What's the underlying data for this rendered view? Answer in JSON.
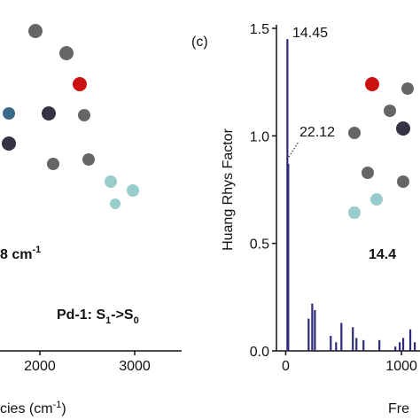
{
  "chart_data": [
    {
      "type": "bar",
      "x_label": [
        "cies (cm",
        "-1",
        ")"
      ],
      "xlim": [
        1580,
        3495
      ],
      "xticks": [
        2000,
        3000
      ],
      "annotations": [
        {
          "parts": [
            "8 cm",
            "-1"
          ]
        },
        {
          "parts": [
            "Pd-1: S",
            "1",
            "->S",
            "0"
          ]
        }
      ]
    },
    {
      "type": "bar",
      "panel_label": "(c)",
      "y_label": "Huang Rhys Factor",
      "x_label": "Fre",
      "xlim": [
        -80,
        1160
      ],
      "ylim": [
        0,
        1.5
      ],
      "xticks": [
        0,
        1000
      ],
      "yticks": [
        {
          "value": 0,
          "label": "0.0"
        },
        0.5,
        {
          "value": 1,
          "label": "1.0"
        },
        1.5
      ],
      "color": "#2e2a7a",
      "x": [
        14.45,
        22.12,
        198,
        229,
        252,
        389,
        435,
        481,
        580,
        611,
        672,
        809,
        947,
        985,
        1015,
        1076,
        1115
      ],
      "values": [
        1.45,
        0.87,
        0.15,
        0.22,
        0.19,
        0.07,
        0.04,
        0.13,
        0.11,
        0.06,
        0.05,
        0.05,
        0.02,
        0.04,
        0.06,
        0.1,
        0.04
      ],
      "annotations": [
        {
          "text": "14.45"
        },
        {
          "text": "22.12"
        },
        {
          "text": "14.4"
        }
      ]
    }
  ]
}
